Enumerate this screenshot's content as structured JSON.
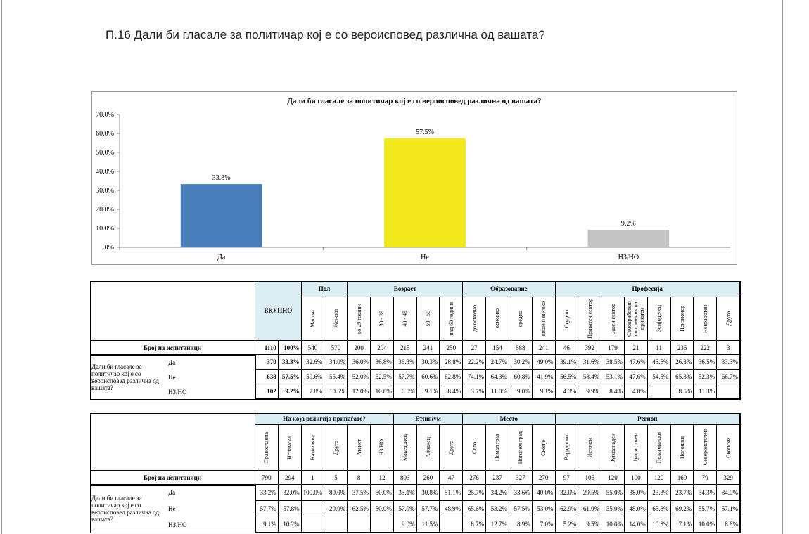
{
  "heading": "П.16 Дали би гласале за политичар кој е со вероисповед различна од вашата?",
  "chart_data": {
    "type": "bar",
    "title": "Дали би гласале за политичар кој е со вероисповед различна од вашата?",
    "categories": [
      "Да",
      "Не",
      "НЗ/НО"
    ],
    "values": [
      33.3,
      57.5,
      9.2
    ],
    "value_labels": [
      "33.3%",
      "57.5%",
      "9.2%"
    ],
    "colors": [
      "#4a7ebb",
      "#f2ea1d",
      "#c4c4c4"
    ],
    "ylim": [
      0,
      70
    ],
    "yticks": [
      {
        "value": 0,
        "label": ".0%"
      },
      {
        "value": 10,
        "label": "10.0%"
      },
      {
        "value": 20,
        "label": "20.0%"
      },
      {
        "value": 30,
        "label": "30.0%"
      },
      {
        "value": 40,
        "label": "40.0%"
      },
      {
        "value": 50,
        "label": "50.0%"
      },
      {
        "value": 60,
        "label": "60.0%"
      },
      {
        "value": 70,
        "label": "70.0%"
      }
    ],
    "grid": false
  },
  "tables": [
    {
      "total_header": "ВКУПНО",
      "groups": [
        {
          "name": "Пол",
          "columns": [
            "Машки",
            "Женски"
          ]
        },
        {
          "name": "Возраст",
          "columns": [
            "до 29 години",
            "30 - 39",
            "40 - 49",
            "50 - 59",
            "над 60 години"
          ]
        },
        {
          "name": "Образование",
          "columns": [
            "до основно",
            "основно",
            "средно",
            "више и високо"
          ]
        },
        {
          "name": "Професија",
          "columns": [
            "Студент",
            "Приватен сектор",
            "Јавен сектор",
            "Самовработен/ сопственик на приватен",
            "Земјоделец",
            "Пензионер",
            "Невработен",
            "Друго"
          ]
        }
      ],
      "count_row": {
        "label": "Број на испитаници",
        "total": [
          "1110",
          "100%"
        ],
        "values": [
          "540",
          "570",
          "200",
          "204",
          "215",
          "241",
          "250",
          "27",
          "154",
          "688",
          "241",
          "46",
          "392",
          "179",
          "21",
          "11",
          "236",
          "222",
          "3"
        ]
      },
      "question": "Дали би гласале за политичар кој е со вероисповед различна од вашата?",
      "answers": [
        {
          "label": "Да",
          "total": [
            "370",
            "33.3%"
          ],
          "values": [
            "32.6%",
            "34.0%",
            "36.0%",
            "36.8%",
            "36.3%",
            "30.3%",
            "28.8%",
            "22.2%",
            "24.7%",
            "30.2%",
            "49.0%",
            "39.1%",
            "31.6%",
            "38.5%",
            "47.6%",
            "45.5%",
            "26.3%",
            "36.5%",
            "33.3%"
          ]
        },
        {
          "label": "Не",
          "total": [
            "638",
            "57.5%"
          ],
          "values": [
            "59.6%",
            "55.4%",
            "52.0%",
            "52.5%",
            "57.7%",
            "60.6%",
            "62.8%",
            "74.1%",
            "64.3%",
            "60.8%",
            "41.9%",
            "56.5%",
            "58.4%",
            "53.1%",
            "47.6%",
            "54.5%",
            "65.3%",
            "52.3%",
            "66.7%"
          ]
        },
        {
          "label": "НЗ/НО",
          "total": [
            "102",
            "9.2%"
          ],
          "values": [
            "7.8%",
            "10.5%",
            "12.0%",
            "10.8%",
            "6.0%",
            "9.1%",
            "8.4%",
            "3.7%",
            "11.0%",
            "9.0%",
            "9.1%",
            "4.3%",
            "9.9%",
            "8.4%",
            "4.8%",
            null,
            "8.5%",
            "11.3%",
            null
          ]
        }
      ]
    },
    {
      "groups": [
        {
          "name": "На која религија припаѓате?",
          "columns": [
            "Православна",
            "Исламска",
            "Католичка",
            "Друго",
            "Атеист",
            "НЗ/НО"
          ]
        },
        {
          "name": "Етникум",
          "columns": [
            "Македонец",
            "Албанец",
            "Друго"
          ]
        },
        {
          "name": "Место",
          "columns": [
            "Село",
            "Помал град",
            "Поголем град",
            "Скопје"
          ]
        },
        {
          "name": "Регион",
          "columns": [
            "Вардарски",
            "Источен",
            "Југозападен",
            "Југоисточен",
            "Пелагониски",
            "Полошки",
            "Североисточен",
            "Скопски"
          ]
        }
      ],
      "count_row": {
        "label": "Број на испитаници",
        "values": [
          "790",
          "294",
          "1",
          "5",
          "8",
          "12",
          "803",
          "260",
          "47",
          "276",
          "237",
          "327",
          "270",
          "97",
          "105",
          "120",
          "100",
          "120",
          "169",
          "70",
          "329"
        ]
      },
      "question": "Дали би гласале за политичар кој е со вероисповед различна од вашата?",
      "answers": [
        {
          "label": "Да",
          "values": [
            "33.2%",
            "32.0%",
            "100.0%",
            "80.0%",
            "37.5%",
            "50.0%",
            "33.1%",
            "30.8%",
            "51.1%",
            "25.7%",
            "34.2%",
            "33.6%",
            "40.0%",
            "32.0%",
            "29.5%",
            "55.0%",
            "38.0%",
            "23.3%",
            "23.7%",
            "34.3%",
            "34.0%"
          ]
        },
        {
          "label": "Не",
          "values": [
            "57.7%",
            "57.8%",
            null,
            "20.0%",
            "62.5%",
            "50.0%",
            "57.9%",
            "57.7%",
            "48.9%",
            "65.6%",
            "53.2%",
            "57.5%",
            "53.0%",
            "62.9%",
            "61.0%",
            "35.0%",
            "48.0%",
            "65.8%",
            "69.2%",
            "55.7%",
            "57.1%"
          ]
        },
        {
          "label": "НЗ/НО",
          "values": [
            "9.1%",
            "10.2%",
            null,
            null,
            null,
            null,
            "9.0%",
            "11.5%",
            null,
            "8.7%",
            "12.7%",
            "8.9%",
            "7.0%",
            "5.2%",
            "9.5%",
            "10.0%",
            "14.0%",
            "10.8%",
            "7.1%",
            "10.0%",
            "8.8%"
          ]
        }
      ]
    }
  ]
}
